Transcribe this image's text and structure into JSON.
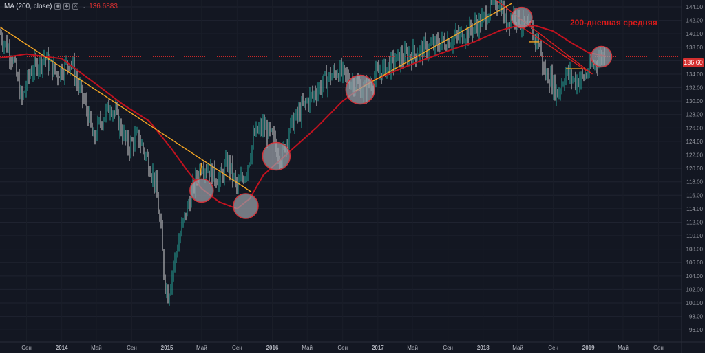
{
  "legend": {
    "label": "MA (200, close)",
    "value": "136.6883",
    "icons": [
      "eye-icon",
      "gear-icon",
      "close-icon",
      "more-icon"
    ],
    "chevron": "chevron-down-icon"
  },
  "annotation": "200-дневная средняя",
  "current_price_label": "136.60",
  "colors": {
    "background": "#131722",
    "ma": "#c1121f",
    "trendline": "#f5a623",
    "price_line": "#c62828",
    "circle_fill": "#9aa0a8",
    "up": "#26a69a",
    "down": "#d5d5d5"
  },
  "chart_data": {
    "type": "line",
    "xlabel": "",
    "ylabel": "",
    "ylim": [
      95,
      144
    ],
    "y_ticks": [
      "96.00",
      "98.00",
      "100.00",
      "102.00",
      "104.00",
      "106.00",
      "108.00",
      "110.00",
      "112.00",
      "114.00",
      "116.00",
      "118.00",
      "120.00",
      "122.00",
      "124.00",
      "126.00",
      "128.00",
      "130.00",
      "132.00",
      "134.00",
      "136.00",
      "138.00",
      "140.00",
      "142.00",
      "144.00"
    ],
    "x_ticks": [
      {
        "label": "Сен",
        "x": "2013-09"
      },
      {
        "label": "2014",
        "x": "2014-01"
      },
      {
        "label": "Май",
        "x": "2014-05"
      },
      {
        "label": "Сен",
        "x": "2014-09"
      },
      {
        "label": "2015",
        "x": "2015-01"
      },
      {
        "label": "Май",
        "x": "2015-05"
      },
      {
        "label": "Сен",
        "x": "2015-09"
      },
      {
        "label": "2016",
        "x": "2016-01"
      },
      {
        "label": "Май",
        "x": "2016-05"
      },
      {
        "label": "Сен",
        "x": "2016-09"
      },
      {
        "label": "2017",
        "x": "2017-01"
      },
      {
        "label": "Май",
        "x": "2017-05"
      },
      {
        "label": "Сен",
        "x": "2017-09"
      },
      {
        "label": "2018",
        "x": "2018-01"
      },
      {
        "label": "Май",
        "x": "2018-05"
      },
      {
        "label": "Сен",
        "x": "2018-09"
      },
      {
        "label": "2019",
        "x": "2019-01"
      },
      {
        "label": "Май",
        "x": "2019-05"
      },
      {
        "label": "Сен",
        "x": "2019-09"
      }
    ],
    "series": [
      {
        "name": "MA (200, close)",
        "points": [
          [
            "2013-06-01",
            136.4
          ],
          [
            "2013-09-01",
            137.0
          ],
          [
            "2014-01-01",
            136.3
          ],
          [
            "2014-05-01",
            132.5
          ],
          [
            "2014-08-01",
            129.5
          ],
          [
            "2014-11-01",
            127.0
          ],
          [
            "2015-01-15",
            123.0
          ],
          [
            "2015-03-15",
            119.5
          ],
          [
            "2015-05-01",
            117.0
          ],
          [
            "2015-07-01",
            115.0
          ],
          [
            "2015-09-01",
            114.0
          ],
          [
            "2015-10-15",
            115.5
          ],
          [
            "2015-12-01",
            119.0
          ],
          [
            "2016-03-01",
            122.5
          ],
          [
            "2016-06-01",
            126.0
          ],
          [
            "2016-09-01",
            130.0
          ],
          [
            "2016-12-01",
            132.8
          ],
          [
            "2017-04-01",
            135.0
          ],
          [
            "2017-08-01",
            137.0
          ],
          [
            "2017-12-01",
            138.8
          ],
          [
            "2018-03-01",
            140.5
          ],
          [
            "2018-05-01",
            141.2
          ],
          [
            "2018-07-01",
            141.2
          ],
          [
            "2018-09-01",
            140.4
          ],
          [
            "2018-11-01",
            138.7
          ],
          [
            "2019-01-01",
            137.2
          ],
          [
            "2019-03-01",
            136.7
          ]
        ]
      },
      {
        "name": "",
        "points": [
          [
            "2013-06-01",
            140.0
          ],
          [
            "2013-07-15",
            136.5
          ],
          [
            "2013-08-15",
            130.0
          ],
          [
            "2013-09-15",
            134.5
          ],
          [
            "2013-11-01",
            136.5
          ],
          [
            "2013-12-15",
            134.0
          ],
          [
            "2014-02-01",
            136.0
          ],
          [
            "2014-03-01",
            132.0
          ],
          [
            "2014-04-01",
            128.5
          ],
          [
            "2014-04-20",
            124.0
          ],
          [
            "2014-05-15",
            127.0
          ],
          [
            "2014-06-20",
            129.5
          ],
          [
            "2014-07-20",
            126.5
          ],
          [
            "2014-08-20",
            123.0
          ],
          [
            "2014-09-20",
            124.8
          ],
          [
            "2014-10-20",
            122.0
          ],
          [
            "2014-11-20",
            118.0
          ],
          [
            "2014-12-10",
            111.0
          ],
          [
            "2014-12-22",
            104.0
          ],
          [
            "2015-01-05",
            101.0
          ],
          [
            "2015-01-20",
            105.0
          ],
          [
            "2015-02-10",
            109.0
          ],
          [
            "2015-03-01",
            112.5
          ],
          [
            "2015-04-01",
            117.0
          ],
          [
            "2015-05-01",
            120.8
          ],
          [
            "2015-06-01",
            119.5
          ],
          [
            "2015-07-01",
            118.3
          ],
          [
            "2015-08-01",
            121.0
          ],
          [
            "2015-09-01",
            117.0
          ],
          [
            "2015-10-01",
            119.5
          ],
          [
            "2015-11-01",
            125.0
          ],
          [
            "2015-12-01",
            126.2
          ],
          [
            "2016-01-01",
            124.5
          ],
          [
            "2016-02-01",
            121.5
          ],
          [
            "2016-03-01",
            126.0
          ],
          [
            "2016-05-01",
            130.0
          ],
          [
            "2016-07-01",
            133.0
          ],
          [
            "2016-08-15",
            134.5
          ],
          [
            "2016-10-01",
            133.0
          ],
          [
            "2016-11-15",
            131.5
          ],
          [
            "2017-01-01",
            134.0
          ],
          [
            "2017-03-01",
            136.0
          ],
          [
            "2017-05-01",
            137.0
          ],
          [
            "2017-07-01",
            138.0
          ],
          [
            "2017-09-01",
            139.0
          ],
          [
            "2017-11-01",
            140.0
          ],
          [
            "2018-01-01",
            142.0
          ],
          [
            "2018-02-01",
            144.5
          ],
          [
            "2018-03-01",
            145.0
          ],
          [
            "2018-03-20",
            141.5
          ],
          [
            "2018-04-15",
            143.0
          ],
          [
            "2018-05-15",
            141.5
          ],
          [
            "2018-06-15",
            140.2
          ],
          [
            "2018-07-15",
            138.5
          ],
          [
            "2018-08-01",
            134.0
          ],
          [
            "2018-08-20",
            133.5
          ],
          [
            "2018-09-15",
            131.0
          ],
          [
            "2018-10-15",
            134.2
          ],
          [
            "2018-11-15",
            133.0
          ],
          [
            "2018-12-15",
            133.5
          ],
          [
            "2019-01-10",
            135.0
          ],
          [
            "2019-02-10",
            136.5
          ],
          [
            "2019-02-28",
            137.0
          ]
        ]
      }
    ],
    "trendlines": [
      {
        "kind": "orange",
        "from": [
          "2013-06-01",
          141.0
        ],
        "to": [
          "2015-10-20",
          116.5
        ]
      },
      {
        "kind": "orange",
        "from": [
          "2015-04-25",
          118.5
        ],
        "to": [
          "2015-05-01",
          120.8
        ]
      },
      {
        "kind": "orange",
        "from": [
          "2016-10-15",
          131.5
        ],
        "to": [
          "2018-04-10",
          144.5
        ]
      },
      {
        "kind": "orange",
        "from": [
          "2018-06-10",
          138.8
        ],
        "to": [
          "2018-07-15",
          138.8
        ]
      },
      {
        "kind": "orange",
        "from": [
          "2018-10-15",
          134.8
        ],
        "to": [
          "2018-12-20",
          134.8
        ]
      },
      {
        "kind": "red",
        "from": [
          "2018-02-15",
          145.0
        ],
        "to": [
          "2019-01-15",
          134.0
        ]
      },
      {
        "kind": "red",
        "from": [
          "2018-05-15",
          141.0
        ],
        "to": [
          "2018-12-25",
          134.5
        ]
      }
    ],
    "current_price": 136.6,
    "highlights": [
      [
        "2015-05-01",
        116.7
      ],
      [
        "2015-10-01",
        114.4
      ],
      [
        "2016-01-15",
        121.8
      ],
      [
        "2016-11-01",
        131.7
      ],
      [
        "2018-05-15",
        142.4
      ],
      [
        "2019-02-15",
        136.6
      ]
    ]
  }
}
